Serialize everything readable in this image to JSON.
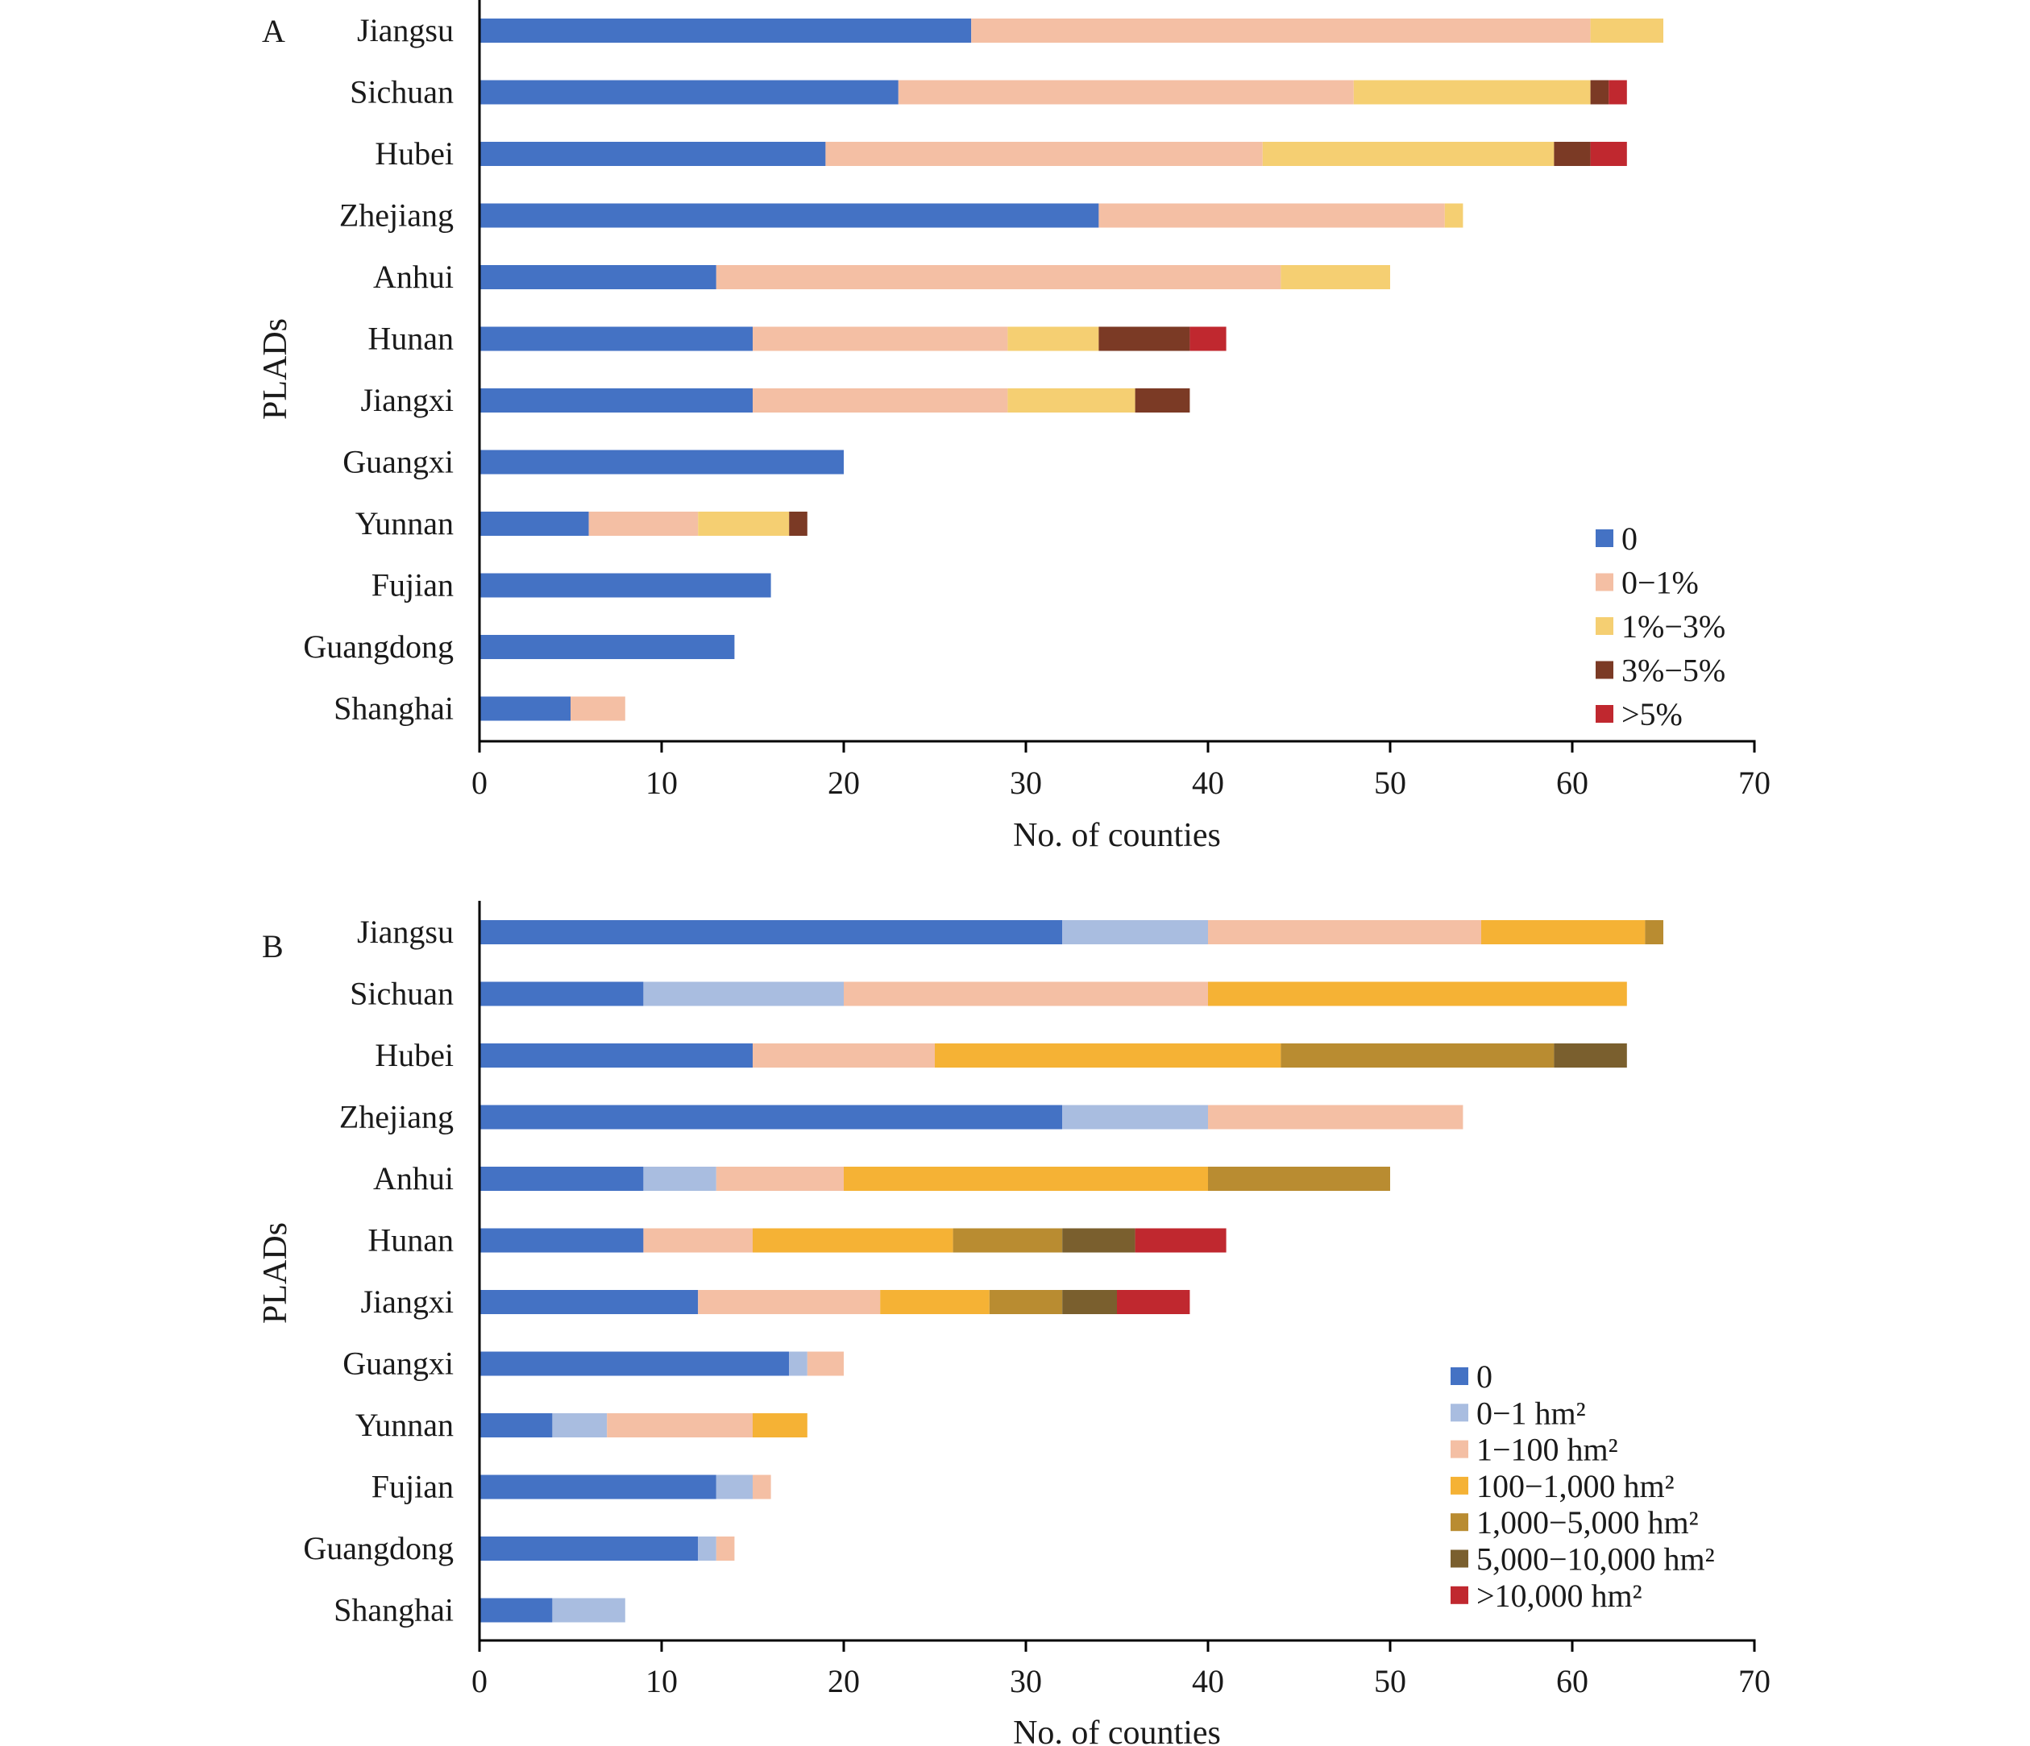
{
  "chart_data": [
    {
      "panel": "A",
      "type": "bar",
      "orientation": "horizontal",
      "stacked": true,
      "categories": [
        "Jiangsu",
        "Sichuan",
        "Hubei",
        "Zhejiang",
        "Anhui",
        "Hunan",
        "Jiangxi",
        "Guangxi",
        "Yunnan",
        "Fujian",
        "Guangdong",
        "Shanghai"
      ],
      "series": [
        {
          "name": "0",
          "color": "#4472c4",
          "values": [
            27,
            23,
            19,
            34,
            13,
            15,
            15,
            20,
            6,
            16,
            14,
            5
          ]
        },
        {
          "name": "0−1%",
          "color": "#f4bfa4",
          "values": [
            34,
            25,
            24,
            19,
            31,
            14,
            14,
            0,
            6,
            0,
            0,
            3
          ]
        },
        {
          "name": "1%−3%",
          "color": "#f5cf72",
          "values": [
            4,
            13,
            16,
            1,
            6,
            5,
            7,
            0,
            5,
            0,
            0,
            0
          ]
        },
        {
          "name": "3%−5%",
          "color": "#7b3a25",
          "values": [
            0,
            1,
            2,
            0,
            0,
            5,
            3,
            0,
            1,
            0,
            0,
            0
          ]
        },
        {
          "name": ">5%",
          "color": "#c0282f",
          "values": [
            0,
            1,
            2,
            0,
            0,
            2,
            0,
            0,
            0,
            0,
            0,
            0
          ]
        }
      ],
      "xlabel": "No. of counties",
      "ylabel": "PLADs",
      "xlim": [
        0,
        70
      ],
      "xticks": [
        0,
        10,
        20,
        30,
        40,
        50,
        60,
        70
      ],
      "legend_position": "bottom-right",
      "grid": false
    },
    {
      "panel": "B",
      "type": "bar",
      "orientation": "horizontal",
      "stacked": true,
      "categories": [
        "Jiangsu",
        "Sichuan",
        "Hubei",
        "Zhejiang",
        "Anhui",
        "Hunan",
        "Jiangxi",
        "Guangxi",
        "Yunnan",
        "Fujian",
        "Guangdong",
        "Shanghai"
      ],
      "series": [
        {
          "name": "0",
          "color": "#4472c4",
          "values": [
            32,
            9,
            15,
            32,
            9,
            9,
            12,
            17,
            4,
            13,
            12,
            4
          ]
        },
        {
          "name": "0−1 hm²",
          "color": "#a9bde0",
          "values": [
            8,
            11,
            0,
            8,
            4,
            0,
            0,
            1,
            3,
            2,
            1,
            4
          ]
        },
        {
          "name": "1−100 hm²",
          "color": "#f4bfa4",
          "values": [
            15,
            20,
            10,
            14,
            7,
            6,
            10,
            2,
            8,
            1,
            1,
            0
          ]
        },
        {
          "name": "100−1,000 hm²",
          "color": "#f5b235",
          "values": [
            9,
            23,
            19,
            0,
            20,
            11,
            6,
            0,
            3,
            0,
            0,
            0
          ]
        },
        {
          "name": "1,000−5,000 hm²",
          "color": "#b98c31",
          "values": [
            1,
            0,
            15,
            0,
            10,
            6,
            4,
            0,
            0,
            0,
            0,
            0
          ]
        },
        {
          "name": "5,000−10,000 hm²",
          "color": "#7a5f2e",
          "values": [
            0,
            0,
            4,
            0,
            0,
            4,
            3,
            0,
            0,
            0,
            0,
            0
          ]
        },
        {
          "name": ">10,000 hm²",
          "color": "#c0282f",
          "values": [
            0,
            0,
            0,
            0,
            0,
            5,
            4,
            0,
            0,
            0,
            0,
            0
          ]
        }
      ],
      "xlabel": "No. of counties",
      "ylabel": "PLADs",
      "xlim": [
        0,
        70
      ],
      "xticks": [
        0,
        10,
        20,
        30,
        40,
        50,
        60,
        70
      ],
      "legend_position": "bottom-right",
      "grid": false
    }
  ]
}
